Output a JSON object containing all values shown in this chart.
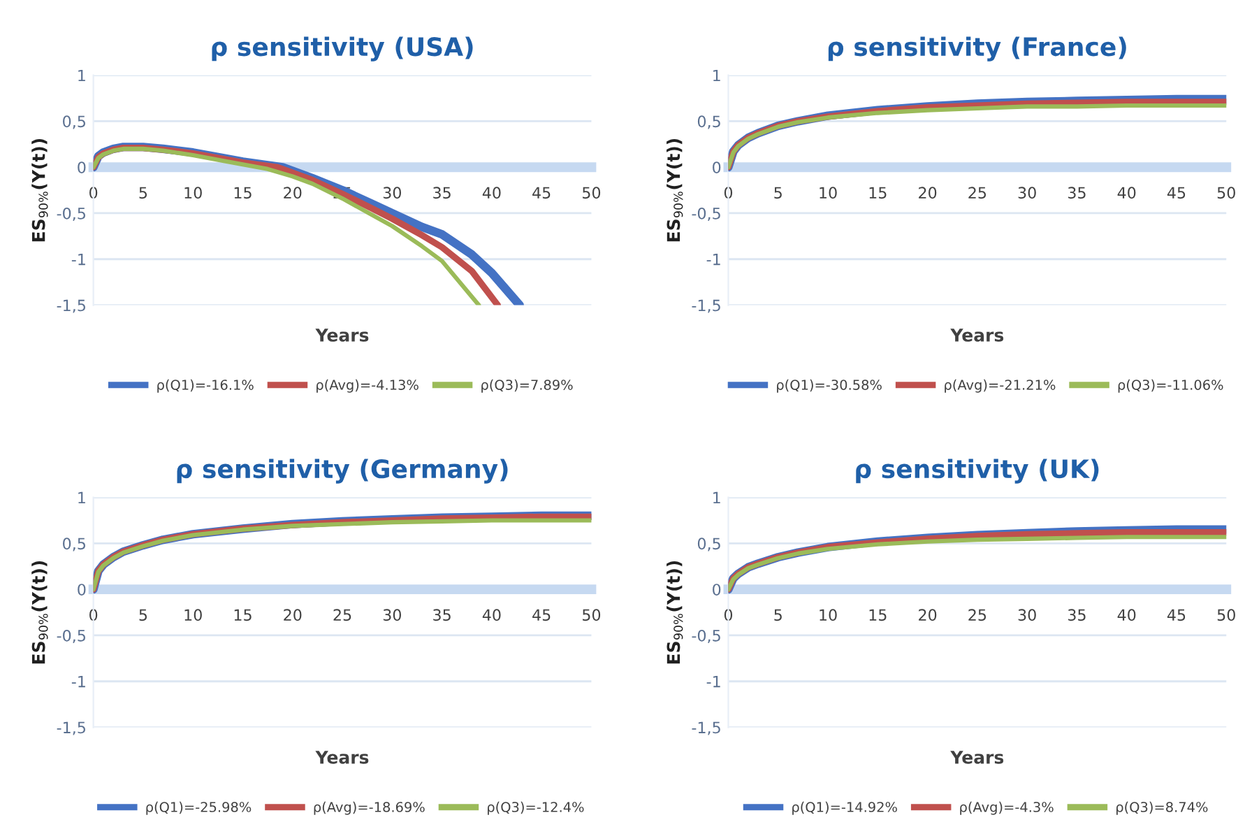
{
  "chart_data": [
    {
      "type": "line",
      "title": "ρ sensitivity (USA)",
      "xlabel": "Years",
      "ylabel": "ES$_{90%}$(Y(t))",
      "xlim": [
        0,
        50
      ],
      "xticks": [
        0,
        5,
        10,
        15,
        20,
        25,
        30,
        35,
        40,
        45,
        50
      ],
      "ylim": [
        -1.5,
        1
      ],
      "yticks": [
        {
          "value": -1.5,
          "label": "-1,5"
        },
        {
          "value": -1,
          "label": "-1"
        },
        {
          "value": -0.5,
          "label": "-0,5"
        },
        0,
        {
          "value": 0.5,
          "label": "0,5"
        },
        1
      ],
      "grid": "y",
      "legend": "bottom",
      "marker": "none",
      "line_style": "solid",
      "series": [
        {
          "name": "ρ(Q1)=-16.1%",
          "color": "#4472c4",
          "x": [
            0,
            0.5,
            1,
            2,
            3,
            5,
            7,
            10,
            13,
            15,
            19,
            22,
            25,
            28,
            30,
            33,
            35,
            38,
            40,
            42.8
          ],
          "values": [
            0,
            0.12,
            0.16,
            0.2,
            0.22,
            0.22,
            0.2,
            0.16,
            0.1,
            0.06,
            0,
            -0.12,
            -0.25,
            -0.4,
            -0.5,
            -0.65,
            -0.73,
            -0.95,
            -1.15,
            -1.5
          ]
        },
        {
          "name": "ρ(Avg)=-4.13%",
          "color": "#c0504d",
          "x": [
            0,
            0.5,
            1,
            2,
            3,
            5,
            7,
            10,
            13,
            15,
            18.5,
            22,
            25,
            28,
            30,
            33,
            35,
            38,
            40.6
          ],
          "values": [
            0,
            0.11,
            0.15,
            0.19,
            0.21,
            0.21,
            0.19,
            0.15,
            0.09,
            0.05,
            0,
            -0.14,
            -0.29,
            -0.45,
            -0.56,
            -0.74,
            -0.87,
            -1.13,
            -1.5
          ]
        },
        {
          "name": "ρ(Q3)=7.89%",
          "color": "#9bbb59",
          "x": [
            0,
            0.5,
            1,
            2,
            3,
            5,
            7,
            10,
            13,
            15,
            17.5,
            20,
            22,
            25,
            28,
            30,
            33,
            35,
            38.7
          ],
          "values": [
            0,
            0.1,
            0.14,
            0.18,
            0.2,
            0.2,
            0.18,
            0.13,
            0.07,
            0.03,
            -0.02,
            -0.1,
            -0.18,
            -0.34,
            -0.52,
            -0.64,
            -0.86,
            -1.02,
            -1.5
          ]
        }
      ]
    },
    {
      "type": "line",
      "title": "ρ sensitivity (France)",
      "xlabel": "Years",
      "ylabel": "ES$_{90%}$(Y(t))",
      "xlim": [
        0,
        50
      ],
      "xticks": [
        0,
        5,
        10,
        15,
        20,
        25,
        30,
        35,
        40,
        45,
        50
      ],
      "ylim": [
        -1.5,
        1
      ],
      "yticks": [
        {
          "value": -1.5,
          "label": "-1,5"
        },
        {
          "value": -1,
          "label": "-1"
        },
        {
          "value": -0.5,
          "label": "-0,5"
        },
        0,
        {
          "value": 0.5,
          "label": "0,5"
        },
        1
      ],
      "grid": "y",
      "legend": "bottom",
      "marker": "none",
      "line_style": "solid",
      "x": [
        0,
        0.5,
        1,
        2,
        3,
        5,
        7,
        10,
        15,
        20,
        25,
        30,
        35,
        40,
        45,
        50
      ],
      "series": [
        {
          "name": "ρ(Q1)=-30.58%",
          "color": "#4472c4",
          "values": [
            0,
            0.17,
            0.24,
            0.32,
            0.37,
            0.45,
            0.5,
            0.56,
            0.62,
            0.66,
            0.69,
            0.71,
            0.72,
            0.73,
            0.74,
            0.74
          ]
        },
        {
          "name": "ρ(Avg)=-21.21%",
          "color": "#c0504d",
          "values": [
            0,
            0.17,
            0.24,
            0.32,
            0.37,
            0.45,
            0.5,
            0.55,
            0.61,
            0.65,
            0.67,
            0.69,
            0.7,
            0.71,
            0.71,
            0.71
          ]
        },
        {
          "name": "ρ(Q3)=-11.06%",
          "color": "#9bbb59",
          "values": [
            0,
            0.16,
            0.23,
            0.31,
            0.36,
            0.44,
            0.49,
            0.54,
            0.59,
            0.62,
            0.64,
            0.66,
            0.66,
            0.67,
            0.67,
            0.67
          ]
        }
      ]
    },
    {
      "type": "line",
      "title": "ρ sensitivity (Germany)",
      "xlabel": "Years",
      "ylabel": "ES$_{90%}$(Y(t))",
      "xlim": [
        0,
        50
      ],
      "xticks": [
        0,
        5,
        10,
        15,
        20,
        25,
        30,
        35,
        40,
        45,
        50
      ],
      "ylim": [
        -1.5,
        1
      ],
      "yticks": [
        {
          "value": -1.5,
          "label": "-1,5"
        },
        {
          "value": -1,
          "label": "-1"
        },
        {
          "value": -0.5,
          "label": "-0,5"
        },
        0,
        {
          "value": 0.5,
          "label": "0,5"
        },
        1
      ],
      "grid": "y",
      "legend": "bottom",
      "marker": "none",
      "line_style": "solid",
      "x": [
        0,
        0.5,
        1,
        2,
        3,
        5,
        7,
        10,
        15,
        20,
        25,
        30,
        35,
        40,
        45,
        50
      ],
      "series": [
        {
          "name": "ρ(Q1)=-25.98%",
          "color": "#4472c4",
          "values": [
            0,
            0.2,
            0.27,
            0.35,
            0.41,
            0.48,
            0.54,
            0.6,
            0.66,
            0.71,
            0.74,
            0.76,
            0.78,
            0.79,
            0.8,
            0.8
          ]
        },
        {
          "name": "ρ(Avg)=-18.69%",
          "color": "#c0504d",
          "values": [
            0,
            0.2,
            0.27,
            0.35,
            0.41,
            0.48,
            0.54,
            0.6,
            0.66,
            0.7,
            0.73,
            0.75,
            0.77,
            0.78,
            0.79,
            0.79
          ]
        },
        {
          "name": "ρ(Q3)=-12.4%",
          "color": "#9bbb59",
          "values": [
            0,
            0.19,
            0.26,
            0.34,
            0.4,
            0.47,
            0.53,
            0.59,
            0.65,
            0.69,
            0.71,
            0.73,
            0.74,
            0.75,
            0.75,
            0.75
          ]
        }
      ]
    },
    {
      "type": "line",
      "title": "ρ sensitivity (UK)",
      "xlabel": "Years",
      "ylabel": "ES$_{90%}$(Y(t))",
      "xlim": [
        0,
        50
      ],
      "xticks": [
        0,
        5,
        10,
        15,
        20,
        25,
        30,
        35,
        40,
        45,
        50
      ],
      "ylim": [
        -1.5,
        1
      ],
      "yticks": [
        {
          "value": -1.5,
          "label": "-1,5"
        },
        {
          "value": -1,
          "label": "-1"
        },
        {
          "value": -0.5,
          "label": "-0,5"
        },
        0,
        {
          "value": 0.5,
          "label": "0,5"
        },
        1
      ],
      "grid": "y",
      "legend": "bottom",
      "marker": "none",
      "line_style": "solid",
      "x": [
        0,
        0.5,
        1,
        2,
        3,
        5,
        7,
        10,
        15,
        20,
        25,
        30,
        35,
        40,
        45,
        50
      ],
      "series": [
        {
          "name": "ρ(Q1)=-14.92%",
          "color": "#4472c4",
          "values": [
            0,
            0.12,
            0.17,
            0.24,
            0.28,
            0.35,
            0.4,
            0.46,
            0.52,
            0.56,
            0.59,
            0.61,
            0.63,
            0.64,
            0.65,
            0.65
          ]
        },
        {
          "name": "ρ(Avg)=-4.3%",
          "color": "#c0504d",
          "values": [
            0,
            0.12,
            0.17,
            0.24,
            0.28,
            0.35,
            0.4,
            0.46,
            0.51,
            0.55,
            0.58,
            0.6,
            0.61,
            0.62,
            0.62,
            0.62
          ]
        },
        {
          "name": "ρ(Q3)=8.74%",
          "color": "#9bbb59",
          "values": [
            0,
            0.11,
            0.16,
            0.23,
            0.27,
            0.34,
            0.39,
            0.44,
            0.49,
            0.52,
            0.54,
            0.55,
            0.56,
            0.57,
            0.57,
            0.57
          ]
        }
      ]
    }
  ]
}
